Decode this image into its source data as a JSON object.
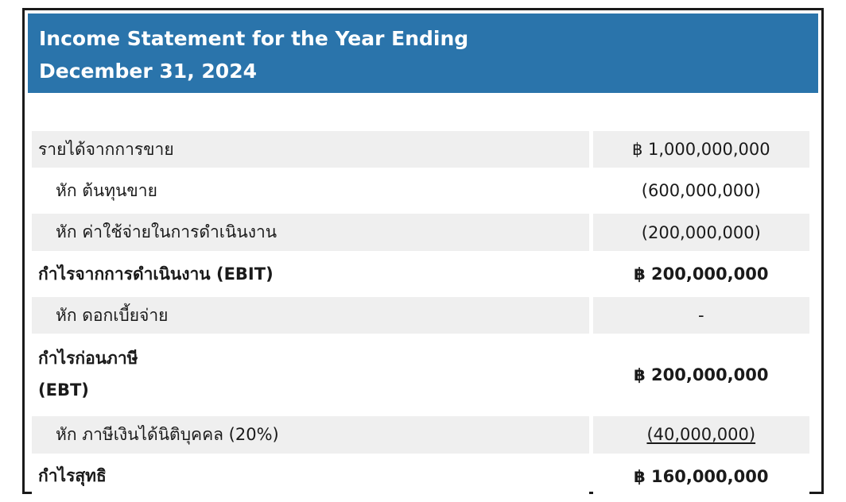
{
  "header": {
    "title_line1": "Income Statement for the Year Ending",
    "title_line2": "December 31, 2024"
  },
  "colors": {
    "header_bg": "#2a74ab",
    "header_text": "#ffffff",
    "row_shaded_bg": "#efefef",
    "row_white_bg": "#ffffff",
    "text": "#1a1a1a",
    "frame_border": "#1a1a1a"
  },
  "currency_symbol": "฿",
  "table": {
    "rows": [
      {
        "label": "รายได้จากการขาย",
        "value": "฿ 1,000,000,000",
        "indent": false,
        "bold": false,
        "shaded": true,
        "tall": false,
        "underline_value": false
      },
      {
        "label": "หัก ต้นทุนขาย",
        "value": "(600,000,000)",
        "indent": true,
        "bold": false,
        "shaded": false,
        "tall": false,
        "underline_value": false
      },
      {
        "label": "หัก ค่าใช้จ่ายในการดำเนินงาน",
        "value": "(200,000,000)",
        "indent": true,
        "bold": false,
        "shaded": true,
        "tall": false,
        "underline_value": false
      },
      {
        "label": "กำไรจากการดำเนินงาน (EBIT)",
        "value": "฿ 200,000,000",
        "indent": false,
        "bold": true,
        "shaded": false,
        "tall": false,
        "underline_value": false
      },
      {
        "label": "หัก ดอกเบี้ยจ่าย",
        "value": "-",
        "indent": true,
        "bold": false,
        "shaded": true,
        "tall": false,
        "underline_value": false
      },
      {
        "label": "กำไรก่อนภาษี\n(EBT)",
        "value": "฿ 200,000,000",
        "indent": false,
        "bold": true,
        "shaded": false,
        "tall": true,
        "underline_value": false
      },
      {
        "label": "หัก ภาษีเงินได้นิติบุคคล (20%)",
        "value": "(40,000,000)",
        "indent": true,
        "bold": false,
        "shaded": true,
        "tall": false,
        "underline_value": true
      },
      {
        "label": "กำไรสุทธิ",
        "value": "฿ 160,000,000",
        "indent": false,
        "bold": true,
        "shaded": false,
        "tall": false,
        "underline_value": false
      }
    ]
  }
}
